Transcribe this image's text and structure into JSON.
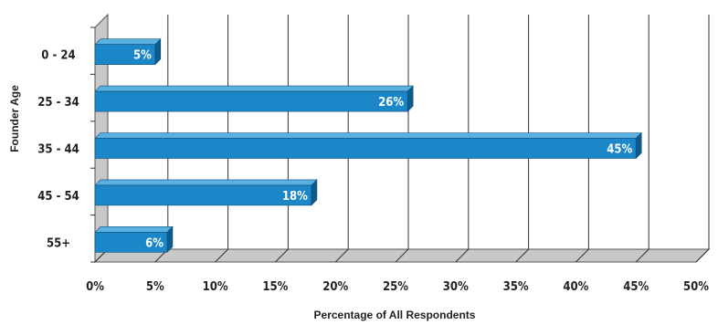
{
  "chart_data": {
    "type": "bar",
    "orientation": "horizontal",
    "categories": [
      "0 - 24",
      "25 - 34",
      "35 - 44",
      "45 - 54",
      "55+"
    ],
    "values": [
      5,
      26,
      45,
      18,
      6
    ],
    "value_labels": [
      "5%",
      "26%",
      "45%",
      "18%",
      "6%"
    ],
    "xlabel": "Percentage of All Respondents",
    "ylabel": "Founder Age",
    "xlim": [
      0,
      50
    ],
    "x_ticks": [
      "0%",
      "5%",
      "10%",
      "15%",
      "20%",
      "25%",
      "30%",
      "35%",
      "40%",
      "45%",
      "50%"
    ],
    "grid": true,
    "colors": {
      "bar": "#1b86c8",
      "bar_top": "#5ab0e0",
      "bar_side": "#0d5a8c",
      "wall": "#c8c8c8"
    }
  }
}
